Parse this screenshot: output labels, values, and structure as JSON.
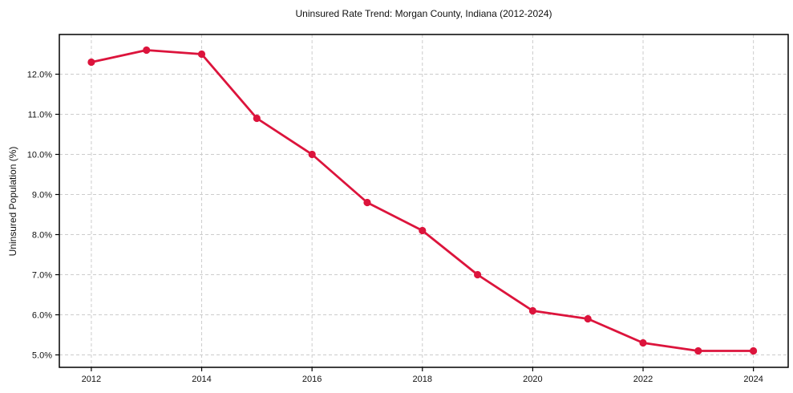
{
  "figure": {
    "background": "#ffffff"
  },
  "chart_data": {
    "type": "line",
    "title": "Uninsured Rate Trend: Morgan County, Indiana (2012-2024)",
    "xlabel": "",
    "ylabel": "Uninsured Population (%)",
    "x": [
      2012,
      2013,
      2014,
      2015,
      2016,
      2017,
      2018,
      2019,
      2020,
      2021,
      2022,
      2023,
      2024
    ],
    "series": [
      {
        "name": "Uninsured rate",
        "values": [
          12.3,
          12.6,
          12.5,
          10.9,
          10.0,
          8.8,
          8.1,
          7.0,
          6.1,
          5.9,
          5.3,
          5.1,
          5.1
        ],
        "color": "#DC143C",
        "marker": "circle",
        "line_width": 2.8,
        "marker_radius": 4.6
      }
    ],
    "x_ticks": [
      2012,
      2014,
      2016,
      2018,
      2020,
      2022,
      2024
    ],
    "x_tick_labels": [
      "2012",
      "2014",
      "2016",
      "2018",
      "2020",
      "2022",
      "2024"
    ],
    "y_ticks": [
      5,
      6,
      7,
      8,
      9,
      10,
      11,
      12
    ],
    "y_tick_labels": [
      "5.0%",
      "6.0%",
      "7.0%",
      "8.0%",
      "9.0%",
      "10.0%",
      "11.0%",
      "12.0%"
    ],
    "xlim": [
      2011.42,
      2024.63
    ],
    "ylim": [
      4.69,
      12.99
    ],
    "grid": {
      "show": true,
      "style": "dashed",
      "axes": "both",
      "color": "#cccccc"
    },
    "legend": "none",
    "colors": {
      "spine": "#000000",
      "tick": "#000000",
      "tick_label": "#111111",
      "title": "#111111",
      "background": "#ffffff"
    }
  }
}
